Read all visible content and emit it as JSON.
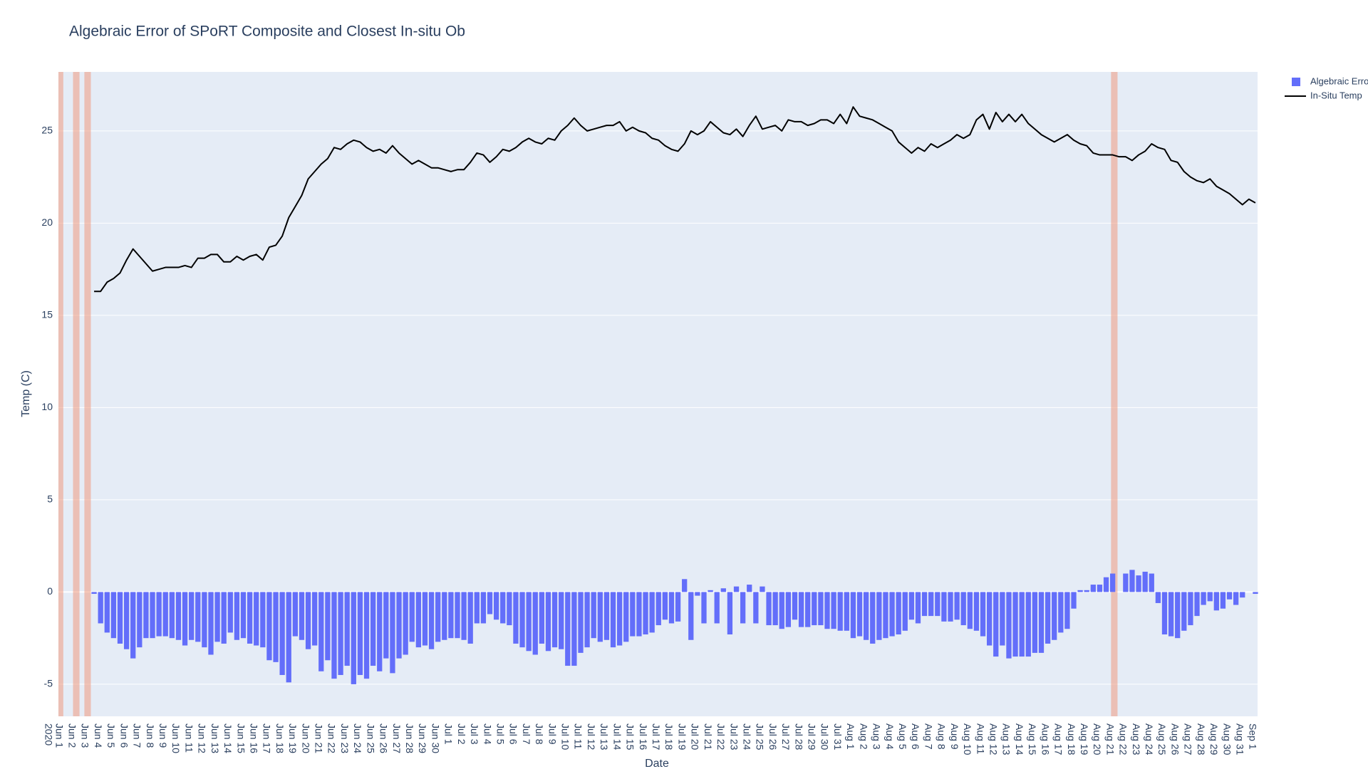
{
  "chart_data": {
    "type": "bar+line",
    "title": "Algebraic Error of SPoRT Composite and Closest In-situ Ob",
    "x_label": "Date",
    "y_label": "Temp (C)",
    "x_year_label": "2020",
    "legend": "top-right-outside",
    "grid": true,
    "plot_background": "#e5ecf6",
    "shaded_color": "#f09a80",
    "shaded_ranges": [
      [
        "2020-06-01T00:00",
        "2020-06-01T09:00"
      ],
      [
        "2020-06-02T03:00",
        "2020-06-02T15:00"
      ],
      [
        "2020-06-03T00:00",
        "2020-06-03T12:00"
      ],
      [
        "2020-08-21T03:00",
        "2020-08-21T15:00"
      ]
    ],
    "xlim": [
      "2020-06-01T00:00",
      "2020-09-01T10:00"
    ],
    "ylim": [
      -6.74,
      28.2
    ],
    "yticks": [
      -5,
      0,
      5,
      10,
      15,
      20,
      25
    ],
    "xticks": [
      {
        "value": "2020-06-01",
        "label": "Jun 1"
      },
      {
        "value": "2020-06-02",
        "label": "Jun 2"
      },
      {
        "value": "2020-06-03",
        "label": "Jun 3"
      },
      {
        "value": "2020-06-04",
        "label": "Jun 4"
      },
      {
        "value": "2020-06-05",
        "label": "Jun 5"
      },
      {
        "value": "2020-06-06",
        "label": "Jun 6"
      },
      {
        "value": "2020-06-07",
        "label": "Jun 7"
      },
      {
        "value": "2020-06-08",
        "label": "Jun 8"
      },
      {
        "value": "2020-06-09",
        "label": "Jun 9"
      },
      {
        "value": "2020-06-10",
        "label": "Jun 10"
      },
      {
        "value": "2020-06-11",
        "label": "Jun 11"
      },
      {
        "value": "2020-06-12",
        "label": "Jun 12"
      },
      {
        "value": "2020-06-13",
        "label": "Jun 13"
      },
      {
        "value": "2020-06-14",
        "label": "Jun 14"
      },
      {
        "value": "2020-06-15",
        "label": "Jun 15"
      },
      {
        "value": "2020-06-16",
        "label": "Jun 16"
      },
      {
        "value": "2020-06-17",
        "label": "Jun 17"
      },
      {
        "value": "2020-06-18",
        "label": "Jun 18"
      },
      {
        "value": "2020-06-19",
        "label": "Jun 19"
      },
      {
        "value": "2020-06-20",
        "label": "Jun 20"
      },
      {
        "value": "2020-06-21",
        "label": "Jun 21"
      },
      {
        "value": "2020-06-22",
        "label": "Jun 22"
      },
      {
        "value": "2020-06-23",
        "label": "Jun 23"
      },
      {
        "value": "2020-06-24",
        "label": "Jun 24"
      },
      {
        "value": "2020-06-25",
        "label": "Jun 25"
      },
      {
        "value": "2020-06-26",
        "label": "Jun 26"
      },
      {
        "value": "2020-06-27",
        "label": "Jun 27"
      },
      {
        "value": "2020-06-28",
        "label": "Jun 28"
      },
      {
        "value": "2020-06-29",
        "label": "Jun 29"
      },
      {
        "value": "2020-06-30",
        "label": "Jun 30"
      },
      {
        "value": "2020-07-01",
        "label": "Jul 1"
      },
      {
        "value": "2020-07-02",
        "label": "Jul 2"
      },
      {
        "value": "2020-07-03",
        "label": "Jul 3"
      },
      {
        "value": "2020-07-04",
        "label": "Jul 4"
      },
      {
        "value": "2020-07-05",
        "label": "Jul 5"
      },
      {
        "value": "2020-07-06",
        "label": "Jul 6"
      },
      {
        "value": "2020-07-07",
        "label": "Jul 7"
      },
      {
        "value": "2020-07-08",
        "label": "Jul 8"
      },
      {
        "value": "2020-07-09",
        "label": "Jul 9"
      },
      {
        "value": "2020-07-10",
        "label": "Jul 10"
      },
      {
        "value": "2020-07-11",
        "label": "Jul 11"
      },
      {
        "value": "2020-07-12",
        "label": "Jul 12"
      },
      {
        "value": "2020-07-13",
        "label": "Jul 13"
      },
      {
        "value": "2020-07-14",
        "label": "Jul 14"
      },
      {
        "value": "2020-07-15",
        "label": "Jul 15"
      },
      {
        "value": "2020-07-16",
        "label": "Jul 16"
      },
      {
        "value": "2020-07-17",
        "label": "Jul 17"
      },
      {
        "value": "2020-07-18",
        "label": "Jul 18"
      },
      {
        "value": "2020-07-19",
        "label": "Jul 19"
      },
      {
        "value": "2020-07-20",
        "label": "Jul 20"
      },
      {
        "value": "2020-07-21",
        "label": "Jul 21"
      },
      {
        "value": "2020-07-22",
        "label": "Jul 22"
      },
      {
        "value": "2020-07-23",
        "label": "Jul 23"
      },
      {
        "value": "2020-07-24",
        "label": "Jul 24"
      },
      {
        "value": "2020-07-25",
        "label": "Jul 25"
      },
      {
        "value": "2020-07-26",
        "label": "Jul 26"
      },
      {
        "value": "2020-07-27",
        "label": "Jul 27"
      },
      {
        "value": "2020-07-28",
        "label": "Jul 28"
      },
      {
        "value": "2020-07-29",
        "label": "Jul 29"
      },
      {
        "value": "2020-07-30",
        "label": "Jul 30"
      },
      {
        "value": "2020-07-31",
        "label": "Jul 31"
      },
      {
        "value": "2020-08-01",
        "label": "Aug 1"
      },
      {
        "value": "2020-08-02",
        "label": "Aug 2"
      },
      {
        "value": "2020-08-03",
        "label": "Aug 3"
      },
      {
        "value": "2020-08-04",
        "label": "Aug 4"
      },
      {
        "value": "2020-08-05",
        "label": "Aug 5"
      },
      {
        "value": "2020-08-06",
        "label": "Aug 6"
      },
      {
        "value": "2020-08-07",
        "label": "Aug 7"
      },
      {
        "value": "2020-08-08",
        "label": "Aug 8"
      },
      {
        "value": "2020-08-09",
        "label": "Aug 9"
      },
      {
        "value": "2020-08-10",
        "label": "Aug 10"
      },
      {
        "value": "2020-08-11",
        "label": "Aug 11"
      },
      {
        "value": "2020-08-12",
        "label": "Aug 12"
      },
      {
        "value": "2020-08-13",
        "label": "Aug 13"
      },
      {
        "value": "2020-08-14",
        "label": "Aug 14"
      },
      {
        "value": "2020-08-15",
        "label": "Aug 15"
      },
      {
        "value": "2020-08-16",
        "label": "Aug 16"
      },
      {
        "value": "2020-08-17",
        "label": "Aug 17"
      },
      {
        "value": "2020-08-18",
        "label": "Aug 18"
      },
      {
        "value": "2020-08-19",
        "label": "Aug 19"
      },
      {
        "value": "2020-08-20",
        "label": "Aug 20"
      },
      {
        "value": "2020-08-21",
        "label": "Aug 21"
      },
      {
        "value": "2020-08-22",
        "label": "Aug 22"
      },
      {
        "value": "2020-08-23",
        "label": "Aug 23"
      },
      {
        "value": "2020-08-24",
        "label": "Aug 24"
      },
      {
        "value": "2020-08-25",
        "label": "Aug 25"
      },
      {
        "value": "2020-08-26",
        "label": "Aug 26"
      },
      {
        "value": "2020-08-27",
        "label": "Aug 27"
      },
      {
        "value": "2020-08-28",
        "label": "Aug 28"
      },
      {
        "value": "2020-08-29",
        "label": "Aug 29"
      },
      {
        "value": "2020-08-30",
        "label": "Aug 30"
      },
      {
        "value": "2020-08-31",
        "label": "Aug 31"
      },
      {
        "value": "2020-09-01",
        "label": "Sep 1"
      }
    ],
    "x": [
      "2020-06-03T18:00",
      "2020-06-04T06:00",
      "2020-06-04T18:00",
      "2020-06-05T06:00",
      "2020-06-05T18:00",
      "2020-06-06T06:00",
      "2020-06-06T18:00",
      "2020-06-07T06:00",
      "2020-06-07T18:00",
      "2020-06-08T06:00",
      "2020-06-08T18:00",
      "2020-06-09T06:00",
      "2020-06-09T18:00",
      "2020-06-10T06:00",
      "2020-06-10T18:00",
      "2020-06-11T06:00",
      "2020-06-11T18:00",
      "2020-06-12T06:00",
      "2020-06-12T18:00",
      "2020-06-13T06:00",
      "2020-06-13T18:00",
      "2020-06-14T06:00",
      "2020-06-14T18:00",
      "2020-06-15T06:00",
      "2020-06-15T18:00",
      "2020-06-16T06:00",
      "2020-06-16T18:00",
      "2020-06-17T06:00",
      "2020-06-17T18:00",
      "2020-06-18T06:00",
      "2020-06-18T18:00",
      "2020-06-19T06:00",
      "2020-06-19T18:00",
      "2020-06-20T06:00",
      "2020-06-20T18:00",
      "2020-06-21T06:00",
      "2020-06-21T18:00",
      "2020-06-22T06:00",
      "2020-06-22T18:00",
      "2020-06-23T06:00",
      "2020-06-23T18:00",
      "2020-06-24T06:00",
      "2020-06-24T18:00",
      "2020-06-25T06:00",
      "2020-06-25T18:00",
      "2020-06-26T06:00",
      "2020-06-26T18:00",
      "2020-06-27T06:00",
      "2020-06-27T18:00",
      "2020-06-28T06:00",
      "2020-06-28T18:00",
      "2020-06-29T06:00",
      "2020-06-29T18:00",
      "2020-06-30T06:00",
      "2020-06-30T18:00",
      "2020-07-01T06:00",
      "2020-07-01T18:00",
      "2020-07-02T06:00",
      "2020-07-02T18:00",
      "2020-07-03T06:00",
      "2020-07-03T18:00",
      "2020-07-04T06:00",
      "2020-07-04T18:00",
      "2020-07-05T06:00",
      "2020-07-05T18:00",
      "2020-07-06T06:00",
      "2020-07-06T18:00",
      "2020-07-07T06:00",
      "2020-07-07T18:00",
      "2020-07-08T06:00",
      "2020-07-08T18:00",
      "2020-07-09T06:00",
      "2020-07-09T18:00",
      "2020-07-10T06:00",
      "2020-07-10T18:00",
      "2020-07-11T06:00",
      "2020-07-11T18:00",
      "2020-07-12T06:00",
      "2020-07-12T18:00",
      "2020-07-13T06:00",
      "2020-07-13T18:00",
      "2020-07-14T06:00",
      "2020-07-14T18:00",
      "2020-07-15T06:00",
      "2020-07-15T18:00",
      "2020-07-16T06:00",
      "2020-07-16T18:00",
      "2020-07-17T06:00",
      "2020-07-17T18:00",
      "2020-07-18T06:00",
      "2020-07-18T18:00",
      "2020-07-19T06:00",
      "2020-07-19T18:00",
      "2020-07-20T06:00",
      "2020-07-20T18:00",
      "2020-07-21T06:00",
      "2020-07-21T18:00",
      "2020-07-22T06:00",
      "2020-07-22T18:00",
      "2020-07-23T06:00",
      "2020-07-23T18:00",
      "2020-07-24T06:00",
      "2020-07-24T18:00",
      "2020-07-25T06:00",
      "2020-07-25T18:00",
      "2020-07-26T06:00",
      "2020-07-26T18:00",
      "2020-07-27T06:00",
      "2020-07-27T18:00",
      "2020-07-28T06:00",
      "2020-07-28T18:00",
      "2020-07-29T06:00",
      "2020-07-29T18:00",
      "2020-07-30T06:00",
      "2020-07-30T18:00",
      "2020-07-31T06:00",
      "2020-07-31T18:00",
      "2020-08-01T06:00",
      "2020-08-01T18:00",
      "2020-08-02T06:00",
      "2020-08-02T18:00",
      "2020-08-03T06:00",
      "2020-08-03T18:00",
      "2020-08-04T06:00",
      "2020-08-04T18:00",
      "2020-08-05T06:00",
      "2020-08-05T18:00",
      "2020-08-06T06:00",
      "2020-08-06T18:00",
      "2020-08-07T06:00",
      "2020-08-07T18:00",
      "2020-08-08T06:00",
      "2020-08-08T18:00",
      "2020-08-09T06:00",
      "2020-08-09T18:00",
      "2020-08-10T06:00",
      "2020-08-10T18:00",
      "2020-08-11T06:00",
      "2020-08-11T18:00",
      "2020-08-12T06:00",
      "2020-08-12T18:00",
      "2020-08-13T06:00",
      "2020-08-13T18:00",
      "2020-08-14T06:00",
      "2020-08-14T18:00",
      "2020-08-15T06:00",
      "2020-08-15T18:00",
      "2020-08-16T06:00",
      "2020-08-16T18:00",
      "2020-08-17T06:00",
      "2020-08-17T18:00",
      "2020-08-18T06:00",
      "2020-08-18T18:00",
      "2020-08-19T06:00",
      "2020-08-19T18:00",
      "2020-08-20T06:00",
      "2020-08-20T18:00",
      "2020-08-21T06:00",
      "2020-08-21T18:00",
      "2020-08-22T06:00",
      "2020-08-22T18:00",
      "2020-08-23T06:00",
      "2020-08-23T18:00",
      "2020-08-24T06:00",
      "2020-08-24T18:00",
      "2020-08-25T06:00",
      "2020-08-25T18:00",
      "2020-08-26T06:00",
      "2020-08-26T18:00",
      "2020-08-27T06:00",
      "2020-08-27T18:00",
      "2020-08-28T06:00",
      "2020-08-28T18:00",
      "2020-08-29T06:00",
      "2020-08-29T18:00",
      "2020-08-30T06:00",
      "2020-08-30T18:00",
      "2020-08-31T06:00",
      "2020-08-31T18:00",
      "2020-09-01T06:00"
    ],
    "series": [
      {
        "name": "Algebraic Error",
        "type": "bar",
        "color": "#636efa",
        "values": [
          -0.1,
          -1.7,
          -2.2,
          -2.5,
          -2.8,
          -3.1,
          -3.6,
          -3.0,
          -2.5,
          -2.5,
          -2.4,
          -2.4,
          -2.5,
          -2.6,
          -2.9,
          -2.6,
          -2.7,
          -3.0,
          -3.4,
          -2.7,
          -2.8,
          -2.2,
          -2.6,
          -2.5,
          -2.8,
          -2.9,
          -3.0,
          -3.7,
          -3.8,
          -4.5,
          -4.9,
          -2.4,
          -2.6,
          -3.1,
          -2.9,
          -4.3,
          -3.7,
          -4.7,
          -4.5,
          -4.0,
          -5.0,
          -4.5,
          -4.7,
          -4.0,
          -4.3,
          -3.6,
          -4.4,
          -3.6,
          -3.4,
          -2.7,
          -3.0,
          -2.9,
          -3.1,
          -2.7,
          -2.6,
          -2.5,
          -2.5,
          -2.6,
          -2.8,
          -1.7,
          -1.7,
          -1.2,
          -1.5,
          -1.7,
          -1.8,
          -2.8,
          -3.0,
          -3.2,
          -3.4,
          -2.8,
          -3.2,
          -3.0,
          -3.1,
          -4.0,
          -4.0,
          -3.3,
          -3.0,
          -2.5,
          -2.7,
          -2.6,
          -3.0,
          -2.9,
          -2.7,
          -2.4,
          -2.4,
          -2.3,
          -2.2,
          -1.8,
          -1.5,
          -1.7,
          -1.6,
          0.7,
          -2.6,
          -0.2,
          -1.7,
          0.1,
          -1.7,
          0.2,
          -2.3,
          0.3,
          -1.7,
          0.4,
          -1.7,
          0.3,
          -1.8,
          -1.8,
          -2.0,
          -1.9,
          -1.5,
          -1.9,
          -1.9,
          -1.8,
          -1.8,
          -2.0,
          -2.0,
          -2.1,
          -2.1,
          -2.5,
          -2.4,
          -2.6,
          -2.8,
          -2.6,
          -2.5,
          -2.4,
          -2.3,
          -2.1,
          -1.5,
          -1.7,
          -1.3,
          -1.3,
          -1.3,
          -1.6,
          -1.6,
          -1.5,
          -1.8,
          -2.0,
          -2.1,
          -2.4,
          -2.9,
          -3.5,
          -2.9,
          -3.6,
          -3.5,
          -3.5,
          -3.5,
          -3.3,
          -3.3,
          -2.8,
          -2.6,
          -2.2,
          -2.0,
          -0.9,
          0.1,
          0.1,
          0.4,
          0.4,
          0.8,
          1.0,
          null,
          1.0,
          1.2,
          0.9,
          1.1,
          1.0,
          -0.6,
          -2.3,
          -2.4,
          -2.5,
          -2.1,
          -1.8,
          -1.3,
          -0.7,
          -0.5,
          -1.0,
          -0.9,
          -0.4,
          -0.7,
          -0.3,
          0.0,
          -0.1
        ]
      },
      {
        "name": "In-Situ Temp",
        "type": "line",
        "color": "#000000",
        "values": [
          16.3,
          16.3,
          16.8,
          17.0,
          17.3,
          18.0,
          18.6,
          18.2,
          17.8,
          17.4,
          17.5,
          17.6,
          17.6,
          17.6,
          17.7,
          17.6,
          18.1,
          18.1,
          18.3,
          18.3,
          17.9,
          17.9,
          18.2,
          18.0,
          18.2,
          18.3,
          18.0,
          18.7,
          18.8,
          19.3,
          20.3,
          20.9,
          21.5,
          22.4,
          22.8,
          23.2,
          23.5,
          24.1,
          24.0,
          24.3,
          24.5,
          24.4,
          24.1,
          23.9,
          24.0,
          23.8,
          24.2,
          23.8,
          23.5,
          23.2,
          23.4,
          23.2,
          23.0,
          23.0,
          22.9,
          22.8,
          22.9,
          22.9,
          23.3,
          23.8,
          23.7,
          23.3,
          23.6,
          24.0,
          23.9,
          24.1,
          24.4,
          24.6,
          24.4,
          24.3,
          24.6,
          24.5,
          25.0,
          25.3,
          25.7,
          25.3,
          25.0,
          25.1,
          25.2,
          25.3,
          25.3,
          25.5,
          25.0,
          25.2,
          25.0,
          24.9,
          24.6,
          24.5,
          24.2,
          24.0,
          23.9,
          24.3,
          25.0,
          24.8,
          25.0,
          25.5,
          25.2,
          24.9,
          24.8,
          25.1,
          24.7,
          25.3,
          25.8,
          25.1,
          25.2,
          25.3,
          25.0,
          25.6,
          25.5,
          25.5,
          25.3,
          25.4,
          25.6,
          25.6,
          25.4,
          25.9,
          25.4,
          26.3,
          25.8,
          25.7,
          25.6,
          25.4,
          25.2,
          25.0,
          24.4,
          24.1,
          23.8,
          24.1,
          23.9,
          24.3,
          24.1,
          24.3,
          24.5,
          24.8,
          24.6,
          24.8,
          25.6,
          25.9,
          25.1,
          26.0,
          25.5,
          25.9,
          25.5,
          25.9,
          25.4,
          25.1,
          24.8,
          24.6,
          24.4,
          24.6,
          24.8,
          24.5,
          24.3,
          24.2,
          23.8,
          23.7,
          23.7,
          23.7,
          23.6,
          23.6,
          23.4,
          23.7,
          23.9,
          24.3,
          24.1,
          24.0,
          23.4,
          23.3,
          22.8,
          22.5,
          22.3,
          22.2,
          22.4,
          22.0,
          21.8,
          21.6,
          21.3,
          21.0,
          21.3,
          21.1
        ]
      }
    ]
  }
}
